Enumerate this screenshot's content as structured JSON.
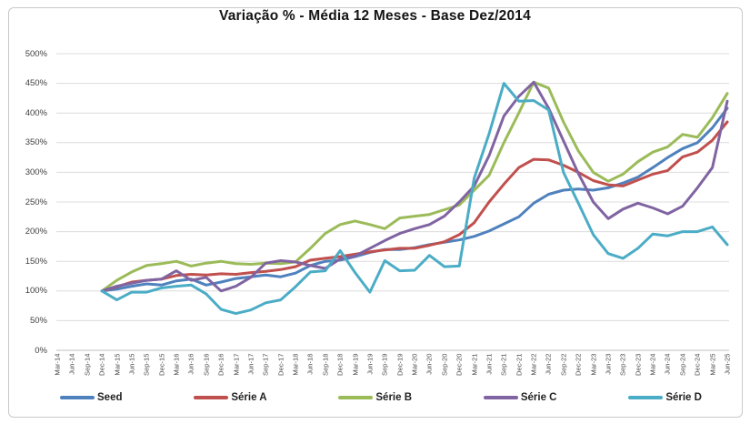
{
  "chart_data": {
    "type": "line",
    "title": "Variação % - Média 12 Meses - Base Dez/2014",
    "legend_position": "bottom",
    "grid": true,
    "x_label_rotation_deg": 90,
    "y_axis": {
      "min": 0,
      "max": 500,
      "step": 50,
      "tick_labels": [
        "500%",
        "450%",
        "400%",
        "350%",
        "300%",
        "250%",
        "200%",
        "150%",
        "100%",
        "50%",
        "0%"
      ]
    },
    "categories": [
      "Mar-14",
      "Jun-14",
      "Sep-14",
      "Dec-14",
      "Mar-15",
      "Jun-15",
      "Sep-15",
      "Dec-15",
      "Mar-16",
      "Jun-16",
      "Sep-16",
      "Dec-16",
      "Mar-17",
      "Jun-17",
      "Sep-17",
      "Dec-17",
      "Mar-18",
      "Jun-18",
      "Sep-18",
      "Dec-18",
      "Mar-19",
      "Jun-19",
      "Sep-19",
      "Dec-19",
      "Mar-20",
      "Jun-20",
      "Sep-20",
      "Dec-20",
      "Mar-21",
      "Jun-21",
      "Sep-21",
      "Dec-21",
      "Mar-22",
      "Jun-22",
      "Sep-22",
      "Dec-22",
      "Mar-23",
      "Jun-23",
      "Sep-23",
      "Dec-23",
      "Mar-24",
      "Jun-24",
      "Sep-24",
      "Dec-24",
      "Mar-25",
      "Jun-25"
    ],
    "series_start_index": 3,
    "series_start_category": "Dec-14",
    "base_value_pct": 100,
    "series": [
      {
        "name": "Seed",
        "color": "#4F81BD",
        "values": [
          100,
          103,
          108,
          112,
          110,
          117,
          120,
          110,
          115,
          121,
          124,
          127,
          124,
          130,
          143,
          150,
          152,
          158,
          165,
          170,
          170,
          173,
          178,
          182,
          186,
          192,
          201,
          213,
          225,
          248,
          263,
          270,
          272,
          270,
          274,
          282,
          292,
          308,
          325,
          340,
          350,
          375,
          408
        ]
      },
      {
        "name": "Série A",
        "color": "#C0504D",
        "values": [
          100,
          107,
          115,
          118,
          120,
          126,
          128,
          127,
          129,
          128,
          131,
          133,
          136,
          141,
          152,
          155,
          158,
          162,
          166,
          169,
          172,
          172,
          177,
          183,
          195,
          215,
          250,
          280,
          308,
          322,
          321,
          312,
          300,
          286,
          279,
          277,
          287,
          297,
          303,
          326,
          334,
          354,
          385
        ]
      },
      {
        "name": "Série B",
        "color": "#9BBB59",
        "values": [
          100,
          118,
          132,
          143,
          146,
          150,
          142,
          147,
          150,
          146,
          145,
          147,
          146,
          149,
          172,
          197,
          212,
          218,
          212,
          205,
          223,
          226,
          229,
          237,
          245,
          270,
          295,
          350,
          400,
          452,
          442,
          385,
          336,
          300,
          285,
          297,
          318,
          334,
          343,
          364,
          359,
          392,
          433
        ]
      },
      {
        "name": "Série C",
        "color": "#8064A2",
        "values": [
          100,
          108,
          113,
          118,
          120,
          134,
          118,
          123,
          100,
          108,
          123,
          147,
          151,
          149,
          143,
          138,
          154,
          159,
          172,
          185,
          197,
          205,
          212,
          226,
          250,
          277,
          328,
          395,
          428,
          452,
          408,
          353,
          298,
          250,
          222,
          238,
          248,
          240,
          230,
          243,
          274,
          308,
          420
        ]
      },
      {
        "name": "Série D",
        "color": "#4BACC6",
        "values": [
          100,
          85,
          98,
          98,
          105,
          108,
          110,
          95,
          69,
          62,
          68,
          80,
          85,
          107,
          132,
          134,
          168,
          131,
          98,
          151,
          134,
          135,
          160,
          141,
          142,
          290,
          365,
          450,
          420,
          421,
          405,
          300,
          248,
          195,
          163,
          155,
          172,
          196,
          193,
          200,
          200,
          208,
          178
        ]
      }
    ]
  }
}
